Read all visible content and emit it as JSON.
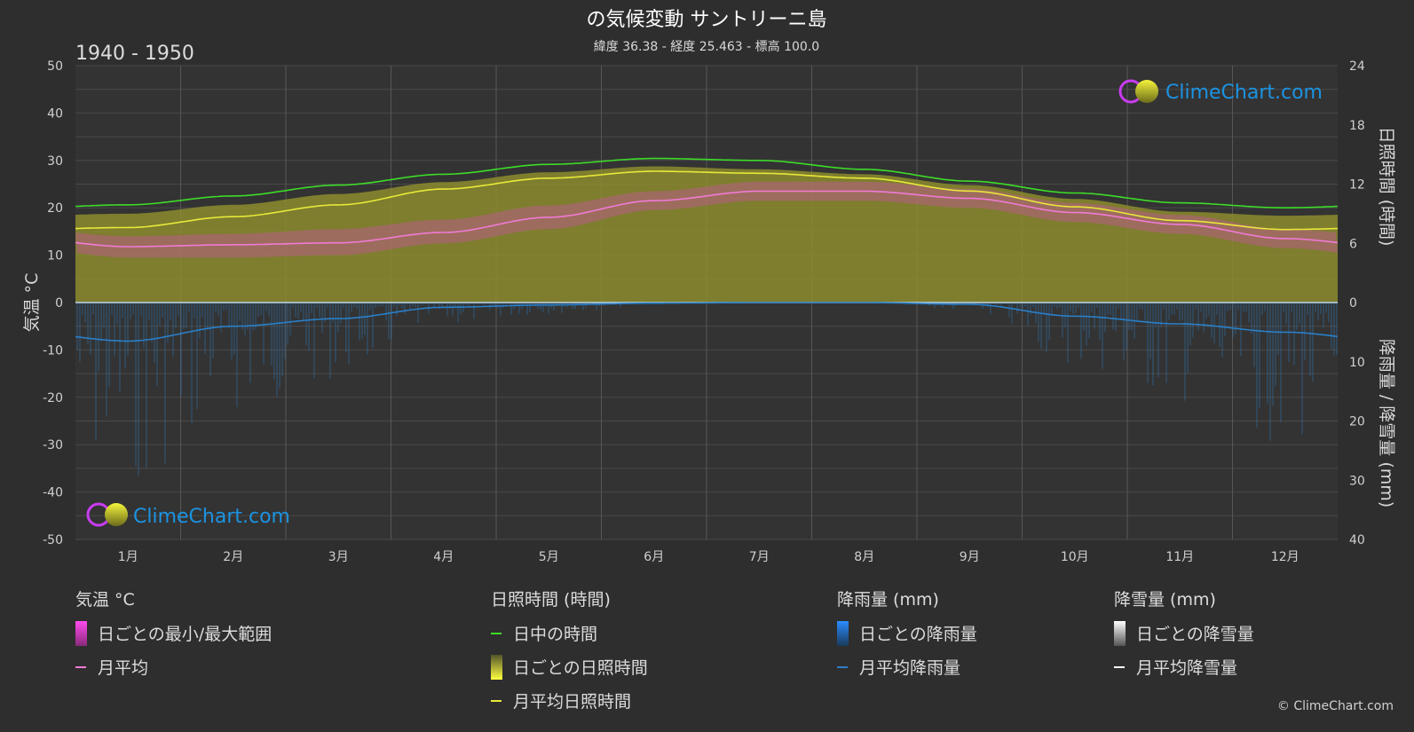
{
  "chart": {
    "title": "の気候変動 サントリーニ島",
    "subtitle": "緯度 36.38 - 経度 25.463 - 標高 100.0",
    "year_range": "1940 - 1950",
    "left_axis_label": "気温 °C",
    "right_axis_label_top": "日照時間 (時間)",
    "right_axis_label_bottom": "降雨量 / 降雪量 (mm)",
    "brand_label": "ClimeChart.com",
    "copyright": "© ClimeChart.com"
  },
  "legend": {
    "groups": [
      {
        "heading": "気温 °C",
        "items": [
          {
            "label": "日ごとの最小/最大範囲",
            "swatch": "bar-pink"
          },
          {
            "label": "月平均",
            "swatch": "line-pink"
          }
        ]
      },
      {
        "heading": "日照時間 (時間)",
        "items": [
          {
            "label": "日中の時間",
            "swatch": "line-green"
          },
          {
            "label": "日ごとの日照時間",
            "swatch": "bar-yellow"
          },
          {
            "label": "月平均日照時間",
            "swatch": "line-yellow"
          }
        ]
      },
      {
        "heading": "降雨量 (mm)",
        "items": [
          {
            "label": "日ごとの降雨量",
            "swatch": "bar-blue"
          },
          {
            "label": "月平均降雨量",
            "swatch": "line-blue"
          }
        ]
      },
      {
        "heading": "降雪量 (mm)",
        "items": [
          {
            "label": "日ごとの降雪量",
            "swatch": "bar-white"
          },
          {
            "label": "月平均降雪量",
            "swatch": "line-white"
          }
        ]
      }
    ]
  },
  "colors": {
    "background": "#2e2e2e",
    "plot_background": "#333333",
    "daylight": "#3ddc28",
    "sunshine_line": "#e8e83a",
    "sunshine_fill": "#8c8c2e",
    "temp_mean": "#f07ad6",
    "temp_range": "#d84ab8",
    "rain": "#2a7fc8",
    "snow": "#ffffff",
    "brand": "#1c93e2"
  },
  "chart_data": {
    "type": "line",
    "categories": [
      "1月",
      "2月",
      "3月",
      "4月",
      "5月",
      "6月",
      "7月",
      "8月",
      "9月",
      "10月",
      "11月",
      "12月"
    ],
    "y_left": {
      "label": "気温 °C",
      "range": [
        -50,
        50
      ],
      "ticks": [
        50,
        40,
        30,
        20,
        10,
        0,
        -10,
        -20,
        -30,
        -40,
        -50
      ]
    },
    "y_right_top": {
      "label": "日照時間 (時間)",
      "range": [
        0,
        24
      ],
      "ticks": [
        24,
        18,
        12,
        6,
        0
      ]
    },
    "y_right_bottom": {
      "label": "降雨量 / 降雪量 (mm)",
      "range": [
        0,
        40
      ],
      "ticks": [
        10,
        20,
        30,
        40
      ]
    },
    "grid": true,
    "series": [
      {
        "name": "日中の時間",
        "axis": "sunshine_hours",
        "values": [
          9.9,
          10.8,
          11.9,
          13.0,
          14.0,
          14.6,
          14.4,
          13.5,
          12.3,
          11.1,
          10.1,
          9.6
        ]
      },
      {
        "name": "月平均日照時間",
        "axis": "sunshine_hours",
        "values": [
          7.6,
          8.7,
          9.9,
          11.5,
          12.6,
          13.3,
          13.1,
          12.6,
          11.3,
          9.7,
          8.3,
          7.4
        ]
      },
      {
        "name": "月平均",
        "axis": "temperature_c",
        "values": [
          11.8,
          12.2,
          12.6,
          14.8,
          18.0,
          21.5,
          23.5,
          23.5,
          22.0,
          19.0,
          16.5,
          13.5
        ]
      },
      {
        "name": "月平均降雨量",
        "axis": "precip_mm",
        "values": [
          6.5,
          4.0,
          2.7,
          0.8,
          0.4,
          0.1,
          0.0,
          0.0,
          0.3,
          2.3,
          3.6,
          5.0
        ]
      },
      {
        "name": "月平均降雪量",
        "axis": "precip_mm",
        "values": [
          0,
          0,
          0,
          0,
          0,
          0,
          0,
          0,
          0,
          0,
          0,
          0
        ]
      }
    ],
    "daily_temperature_range": {
      "min": [
        9.5,
        9.5,
        10.0,
        12.5,
        15.5,
        19.5,
        21.5,
        21.5,
        20.0,
        17.0,
        14.5,
        11.5
      ],
      "max": [
        14.0,
        14.5,
        15.5,
        17.5,
        20.5,
        23.5,
        25.5,
        25.5,
        24.0,
        21.0,
        18.5,
        15.5
      ]
    },
    "daily_sunshine_band_top": [
      9.0,
      9.9,
      11.0,
      12.2,
      13.2,
      13.8,
      13.5,
      13.0,
      11.9,
      10.5,
      9.2,
      8.8
    ]
  }
}
